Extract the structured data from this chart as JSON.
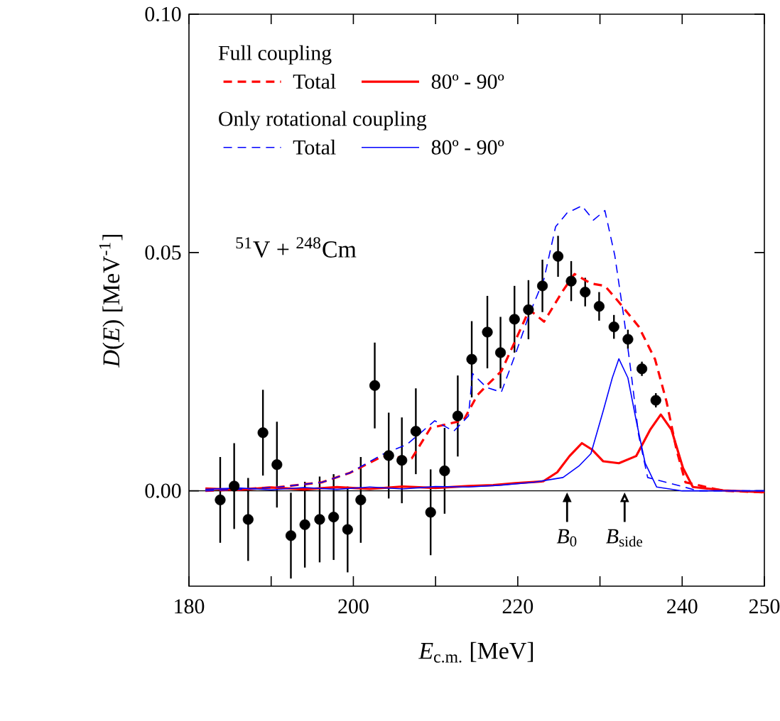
{
  "chart_data": {
    "type": "line",
    "xlabel": "*E*$_{c.m.}$ [MeV]",
    "ylabel": "*D*(*E*) [MeV$^{-1}$]",
    "xlim": [
      180,
      250
    ],
    "ylim": [
      -0.02,
      0.1
    ],
    "xticks": [
      180,
      {
        "value": 190,
        "label": null
      },
      200,
      {
        "value": 210,
        "label": null
      },
      220,
      {
        "value": 230,
        "label": null
      },
      240,
      250
    ],
    "yticks": [
      {
        "value": 0,
        "label": "0.00"
      },
      {
        "value": 0.05,
        "label": "0.05"
      },
      {
        "value": 0.1,
        "label": "0.10"
      }
    ],
    "legend": "top left",
    "grid": false,
    "annotations": [
      "Full coupling",
      "Only rotational coupling",
      "$^{51}$V + $^{248}$Cm",
      {
        "text": "*B*$_{0}$",
        "x": 226,
        "y": 0
      },
      {
        "text": "*B*$_{side}$",
        "x": 233,
        "y": 0
      }
    ],
    "ref_lines": [
      {
        "axis": "y",
        "value": 0,
        "color": "#000000"
      }
    ],
    "series": [
      {
        "type": "scatter",
        "marker": "circle",
        "color": "#000000",
        "x": [
          183.8,
          185.5,
          187.2,
          189.0,
          190.7,
          192.4,
          194.1,
          195.9,
          197.6,
          199.3,
          200.9,
          202.6,
          204.3,
          205.9,
          207.6,
          209.4,
          211.1,
          212.7,
          214.4,
          216.3,
          217.9,
          219.6,
          221.3,
          223.0,
          224.9,
          226.5,
          228.2,
          229.9,
          231.7,
          233.4,
          235.1,
          236.8
        ],
        "values": [
          -0.0019,
          0.001,
          -0.006,
          0.0122,
          0.0055,
          -0.0094,
          -0.0071,
          -0.006,
          -0.0055,
          -0.0081,
          -0.0019,
          0.0221,
          0.0074,
          0.0064,
          0.0125,
          -0.0045,
          0.0042,
          0.0157,
          0.0276,
          0.0333,
          0.029,
          0.036,
          0.038,
          0.043,
          0.0492,
          0.044,
          0.0417,
          0.0387,
          0.0344,
          0.0318,
          0.0256,
          0.019
        ],
        "errors": [
          0.009,
          0.009,
          0.0087,
          0.009,
          0.009,
          0.009,
          0.009,
          0.009,
          0.009,
          0.009,
          0.009,
          0.009,
          0.009,
          0.009,
          0.009,
          0.009,
          0.009,
          0.0085,
          0.008,
          0.0076,
          0.0075,
          0.007,
          0.0062,
          0.0055,
          0.0043,
          0.0042,
          0.003,
          0.003,
          0.0025,
          0.002,
          0.0015,
          0.0015
        ]
      },
      {
        "name": "Total",
        "color": "#ff0000",
        "line_style": "dashed",
        "x": [
          182,
          186,
          191,
          196.2,
          199.6,
          203.6,
          207.1,
          209.4,
          213.4,
          215.1,
          216,
          218,
          219.7,
          221.4,
          223.2,
          225.5,
          226.9,
          228.9,
          230.6,
          232.3,
          234.7,
          236.7,
          238.1,
          239.3,
          240.4,
          245,
          250
        ],
        "values": [
          0,
          0.0003,
          0.0008,
          0.0018,
          0.0038,
          0.0073,
          0.0068,
          0.0132,
          0.0148,
          0.0201,
          0.0217,
          0.0251,
          0.0315,
          0.038,
          0.0355,
          0.042,
          0.0455,
          0.0435,
          0.043,
          0.0396,
          0.0345,
          0.0276,
          0.0187,
          0.0087,
          0.0018,
          0,
          -0.0003
        ]
      },
      {
        "name": "80º - 90º",
        "color": "#ff0000",
        "line_style": "solid",
        "x": [
          182,
          186,
          190,
          194,
          198,
          202,
          206,
          210,
          214,
          217,
          219.7,
          223.1,
          224.8,
          226.3,
          227.8,
          229.0,
          230.4,
          232.3,
          234.4,
          236.1,
          237.4,
          238.7,
          240.1,
          241.3,
          245,
          250
        ],
        "values": [
          0.0005,
          0.0002,
          0.0007,
          0.0003,
          0.0008,
          0.0004,
          0.0009,
          0.0006,
          0.001,
          0.0012,
          0.0016,
          0.002,
          0.0039,
          0.0073,
          0.01,
          0.0087,
          0.0062,
          0.0058,
          0.0073,
          0.0128,
          0.016,
          0.0128,
          0.0048,
          0.0008,
          0.0001,
          -0.0003
        ]
      },
      {
        "name": "Total",
        "color": "#0000ff",
        "line_style": "dashed",
        "x": [
          182,
          186,
          191,
          196.2,
          199.6,
          203.6,
          206.5,
          209.9,
          212.2,
          214,
          214.5,
          216.2,
          218,
          219.7,
          221.4,
          223.2,
          224.6,
          226,
          227.8,
          229.2,
          230.6,
          231.8,
          232.9,
          233.8,
          234.7,
          235.8,
          242,
          250
        ],
        "values": [
          0,
          0.0003,
          0.0008,
          0.0018,
          0.0038,
          0.0077,
          0.0097,
          0.0147,
          0.0125,
          0.0157,
          0.0246,
          0.0217,
          0.0207,
          0.0286,
          0.037,
          0.0445,
          0.0554,
          0.0583,
          0.0598,
          0.0568,
          0.0588,
          0.0494,
          0.0365,
          0.0246,
          0.0117,
          0.0028,
          0,
          0
        ]
      },
      {
        "name": "80º - 90º",
        "color": "#0000ff",
        "line_style": "solid",
        "x": [
          182,
          186,
          190,
          194,
          198,
          202,
          206,
          210,
          214,
          218,
          222,
          225.5,
          227.5,
          228.9,
          230.4,
          231.5,
          232.3,
          233.4,
          234.4,
          235.5,
          236.9,
          240,
          250
        ],
        "values": [
          0.0003,
          0.0006,
          0.0002,
          0.0007,
          0.0003,
          0.0008,
          0.0004,
          0.0009,
          0.0008,
          0.0012,
          0.0018,
          0.0028,
          0.0053,
          0.0078,
          0.0168,
          0.0237,
          0.0277,
          0.0237,
          0.0148,
          0.0058,
          0.0008,
          0,
          0
        ]
      }
    ]
  }
}
